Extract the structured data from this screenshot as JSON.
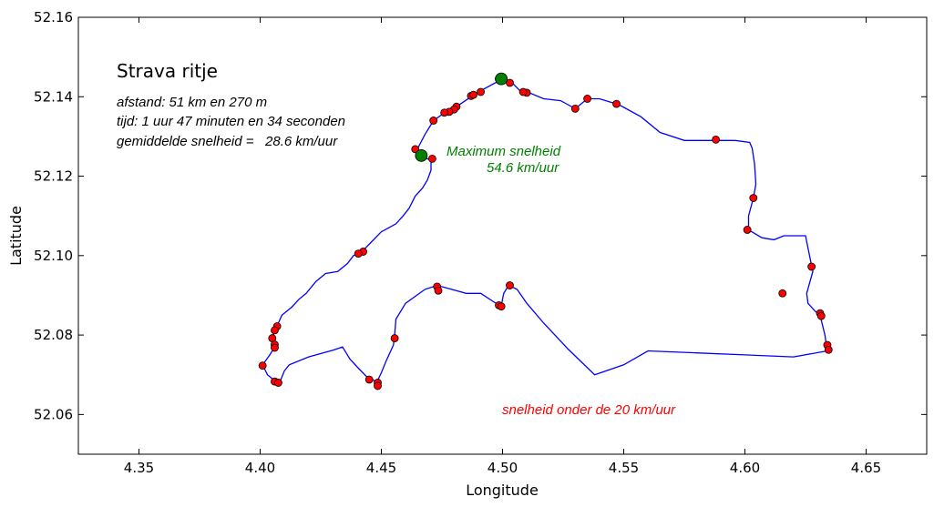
{
  "chart_data": {
    "type": "scatter",
    "xlabel": "Longitude",
    "ylabel": "Latitude",
    "xlim": [
      4.325,
      4.675
    ],
    "ylim": [
      52.05,
      52.16
    ],
    "xticks": [
      "4.35",
      "4.40",
      "4.45",
      "4.50",
      "4.55",
      "4.60",
      "4.65"
    ],
    "xtick_values": [
      4.35,
      4.4,
      4.45,
      4.5,
      4.55,
      4.6,
      4.65
    ],
    "yticks": [
      "52.06",
      "52.08",
      "52.10",
      "52.12",
      "52.14",
      "52.16"
    ],
    "ytick_values": [
      52.06,
      52.08,
      52.1,
      52.12,
      52.14,
      52.16
    ],
    "title": "Strava ritje",
    "info_lines": [
      "afstand: 51 km en 270 m",
      "tijd: 1 uur 47 minuten en 34 seconden",
      "gemiddelde snelheid =   28.6 km/uur"
    ],
    "max_annotation": [
      "Maximum snelheid",
      "54.6 km/uur"
    ],
    "slow_annotation": "snelheid onder de 20 km/uur",
    "colors": {
      "route": "#0000ff",
      "slow": "#ff0000",
      "max": "#008000"
    },
    "route": [
      [
        4.4665,
        52.125
      ],
      [
        4.4685,
        52.1245
      ],
      [
        4.4705,
        52.124
      ],
      [
        4.4705,
        52.1215
      ],
      [
        4.469,
        52.119
      ],
      [
        4.467,
        52.117
      ],
      [
        4.464,
        52.115
      ],
      [
        4.4615,
        52.112
      ],
      [
        4.459,
        52.11
      ],
      [
        4.456,
        52.108
      ],
      [
        4.453,
        52.107
      ],
      [
        4.45,
        52.106
      ],
      [
        4.446,
        52.1035
      ],
      [
        4.442,
        52.101
      ],
      [
        4.4385,
        52.1
      ],
      [
        4.436,
        52.098
      ],
      [
        4.432,
        52.096
      ],
      [
        4.427,
        52.0955
      ],
      [
        4.423,
        52.0935
      ],
      [
        4.419,
        52.0905
      ],
      [
        4.416,
        52.089
      ],
      [
        4.413,
        52.087
      ],
      [
        4.409,
        52.085
      ],
      [
        4.4075,
        52.083
      ],
      [
        4.407,
        52.082
      ],
      [
        4.406,
        52.081
      ],
      [
        4.405,
        52.079
      ],
      [
        4.406,
        52.077
      ],
      [
        4.404,
        52.075
      ],
      [
        4.401,
        52.0725
      ],
      [
        4.403,
        52.07
      ],
      [
        4.406,
        52.0685
      ],
      [
        4.408,
        52.068
      ],
      [
        4.41,
        52.071
      ],
      [
        4.412,
        52.0725
      ],
      [
        4.42,
        52.0745
      ],
      [
        4.43,
        52.0762
      ],
      [
        4.434,
        52.077
      ],
      [
        4.437,
        52.074
      ],
      [
        4.44,
        52.072
      ],
      [
        4.444,
        52.0695
      ],
      [
        4.446,
        52.069
      ],
      [
        4.448,
        52.068
      ],
      [
        4.45,
        52.0705
      ],
      [
        4.452,
        52.0735
      ],
      [
        4.455,
        52.0775
      ],
      [
        4.4555,
        52.08
      ],
      [
        4.456,
        52.084
      ],
      [
        4.46,
        52.088
      ],
      [
        4.468,
        52.0915
      ],
      [
        4.473,
        52.0925
      ],
      [
        4.479,
        52.0915
      ],
      [
        4.485,
        52.0905
      ],
      [
        4.491,
        52.0905
      ],
      [
        4.496,
        52.0885
      ],
      [
        4.4985,
        52.0875
      ],
      [
        4.4995,
        52.0875
      ],
      [
        4.5005,
        52.0905
      ],
      [
        4.5025,
        52.0925
      ],
      [
        4.506,
        52.0915
      ],
      [
        4.51,
        52.088
      ],
      [
        4.517,
        52.083
      ],
      [
        4.527,
        52.0765
      ],
      [
        4.538,
        52.07
      ],
      [
        4.55,
        52.0725
      ],
      [
        4.56,
        52.076
      ],
      [
        4.58,
        52.0755
      ],
      [
        4.6,
        52.075
      ],
      [
        4.62,
        52.0745
      ],
      [
        4.634,
        52.076
      ],
      [
        4.633,
        52.08
      ],
      [
        4.631,
        52.085
      ],
      [
        4.629,
        52.086
      ],
      [
        4.626,
        52.088
      ],
      [
        4.6255,
        52.0905
      ],
      [
        4.628,
        52.096
      ],
      [
        4.627,
        52.099
      ],
      [
        4.625,
        52.105
      ],
      [
        4.616,
        52.105
      ],
      [
        4.612,
        52.104
      ],
      [
        4.607,
        52.1045
      ],
      [
        4.6015,
        52.1065
      ],
      [
        4.6015,
        52.11
      ],
      [
        4.6035,
        52.1145
      ],
      [
        4.6045,
        52.118
      ],
      [
        4.604,
        52.123
      ],
      [
        4.603,
        52.127
      ],
      [
        4.602,
        52.1285
      ],
      [
        4.596,
        52.129
      ],
      [
        4.588,
        52.129
      ],
      [
        4.575,
        52.129
      ],
      [
        4.565,
        52.131
      ],
      [
        4.557,
        52.135
      ],
      [
        4.548,
        52.138
      ],
      [
        4.54,
        52.1395
      ],
      [
        4.535,
        52.1395
      ],
      [
        4.53,
        52.137
      ],
      [
        4.524,
        52.139
      ],
      [
        4.517,
        52.1395
      ],
      [
        4.511,
        52.141
      ],
      [
        4.508,
        52.141
      ],
      [
        4.504,
        52.1435
      ],
      [
        4.5,
        52.144
      ],
      [
        4.497,
        52.1435
      ],
      [
        4.491,
        52.1415
      ],
      [
        4.487,
        52.14
      ],
      [
        4.481,
        52.1375
      ],
      [
        4.478,
        52.1365
      ],
      [
        4.475,
        52.1355
      ],
      [
        4.4715,
        52.134
      ],
      [
        4.468,
        52.1305
      ],
      [
        4.465,
        52.127
      ],
      [
        4.464,
        52.1265
      ],
      [
        4.4665,
        52.125
      ]
    ],
    "slow_points": [
      [
        4.499,
        52.144
      ],
      [
        4.4985,
        52.1445
      ],
      [
        4.503,
        52.1435
      ],
      [
        4.51,
        52.141
      ],
      [
        4.5085,
        52.1412
      ],
      [
        4.491,
        52.1412
      ],
      [
        4.487,
        52.1402
      ],
      [
        4.488,
        52.1405
      ],
      [
        4.481,
        52.1375
      ],
      [
        4.48,
        52.1368
      ],
      [
        4.478,
        52.1362
      ],
      [
        4.476,
        52.136
      ],
      [
        4.4715,
        52.134
      ],
      [
        4.464,
        52.1268
      ],
      [
        4.471,
        52.1244
      ],
      [
        4.53,
        52.137
      ],
      [
        4.535,
        52.1395
      ],
      [
        4.547,
        52.1382
      ],
      [
        4.588,
        52.1292
      ],
      [
        4.6035,
        52.1145
      ],
      [
        4.601,
        52.1065
      ],
      [
        4.6275,
        52.0972
      ],
      [
        4.6155,
        52.0905
      ],
      [
        4.631,
        52.0855
      ],
      [
        4.6315,
        52.0848
      ],
      [
        4.634,
        52.0775
      ],
      [
        4.6345,
        52.0763
      ],
      [
        4.4425,
        52.101
      ],
      [
        4.4405,
        52.1005
      ],
      [
        4.407,
        52.0822
      ],
      [
        4.406,
        52.0812
      ],
      [
        4.405,
        52.0792
      ],
      [
        4.406,
        52.0776
      ],
      [
        4.406,
        52.0768
      ],
      [
        4.401,
        52.0723
      ],
      [
        4.406,
        52.0683
      ],
      [
        4.4075,
        52.068
      ],
      [
        4.445,
        52.0688
      ],
      [
        4.4485,
        52.068
      ],
      [
        4.4485,
        52.0672
      ],
      [
        4.4555,
        52.0792
      ],
      [
        4.473,
        52.0922
      ],
      [
        4.4735,
        52.0912
      ],
      [
        4.4985,
        52.0875
      ],
      [
        4.4995,
        52.0872
      ],
      [
        4.503,
        52.0925
      ]
    ],
    "max_points": [
      [
        4.4665,
        52.1252
      ],
      [
        4.4995,
        52.1445
      ]
    ]
  }
}
